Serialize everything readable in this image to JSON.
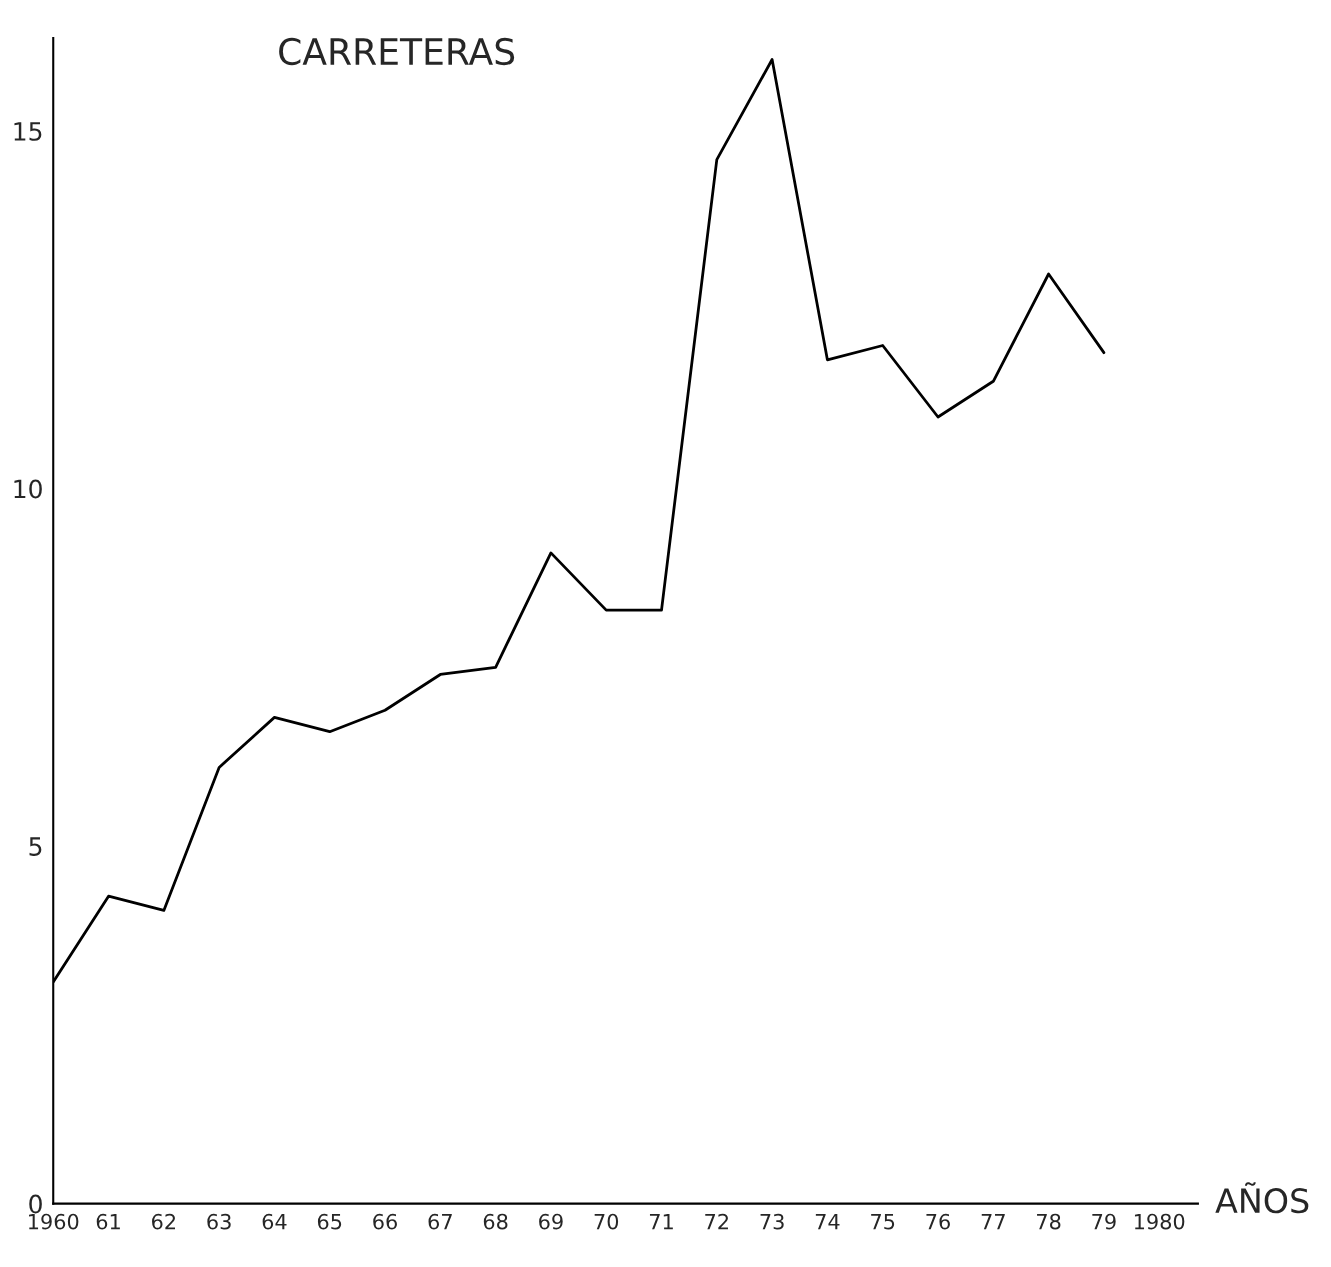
{
  "chart_data": {
    "type": "line",
    "title": "CARRETERAS",
    "xlabel": "AÑOS",
    "x": [
      1960,
      1961,
      1962,
      1963,
      1964,
      1965,
      1966,
      1967,
      1968,
      1969,
      1970,
      1971,
      1972,
      1973,
      1974,
      1975,
      1976,
      1977,
      1978,
      1979
    ],
    "series": [
      {
        "color": "#000000",
        "values": [
          3.1,
          4.3,
          4.1,
          6.1,
          6.8,
          6.6,
          6.9,
          7.4,
          7.5,
          9.1,
          8.3,
          8.3,
          14.6,
          16.0,
          11.8,
          12.0,
          11.0,
          11.5,
          13.0,
          11.9
        ]
      }
    ],
    "xlim": [
      1960,
      1980.7
    ],
    "ylim": [
      0,
      16.3
    ],
    "xticks": [
      {
        "value": 1960,
        "label": "1960"
      },
      {
        "value": 1961,
        "label": "61"
      },
      {
        "value": 1962,
        "label": "62"
      },
      {
        "value": 1963,
        "label": "63"
      },
      {
        "value": 1964,
        "label": "64"
      },
      {
        "value": 1965,
        "label": "65"
      },
      {
        "value": 1966,
        "label": "66"
      },
      {
        "value": 1967,
        "label": "67"
      },
      {
        "value": 1968,
        "label": "68"
      },
      {
        "value": 1969,
        "label": "69"
      },
      {
        "value": 1970,
        "label": "70"
      },
      {
        "value": 1971,
        "label": "71"
      },
      {
        "value": 1972,
        "label": "72"
      },
      {
        "value": 1973,
        "label": "73"
      },
      {
        "value": 1974,
        "label": "74"
      },
      {
        "value": 1975,
        "label": "75"
      },
      {
        "value": 1976,
        "label": "76"
      },
      {
        "value": 1977,
        "label": "77"
      },
      {
        "value": 1978,
        "label": "78"
      },
      {
        "value": 1979,
        "label": "79"
      },
      {
        "value": 1980,
        "label": "1980"
      }
    ],
    "yticks": [
      0,
      5,
      10,
      15
    ],
    "grid": false
  }
}
